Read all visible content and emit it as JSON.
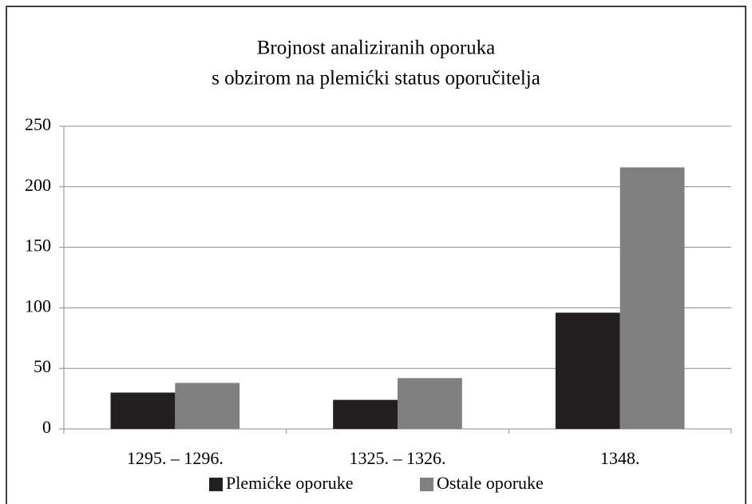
{
  "chart_data": {
    "type": "bar",
    "title": [
      "Brojnost analiziranih oporuka",
      "s obzirom na plemićki status oporučitelja"
    ],
    "categories": [
      "1295. – 1296.",
      "1325. – 1326.",
      "1348."
    ],
    "series": [
      {
        "name": "Plemićke oporuke",
        "color": "#231f20",
        "values": [
          30,
          24,
          96
        ]
      },
      {
        "name": "Ostale oporuke",
        "color": "#808080",
        "values": [
          38,
          42,
          216
        ]
      }
    ],
    "ylim": [
      0,
      250
    ],
    "yticks": [
      0,
      50,
      100,
      150,
      200,
      250
    ],
    "grid": true,
    "legend": "bottom"
  }
}
